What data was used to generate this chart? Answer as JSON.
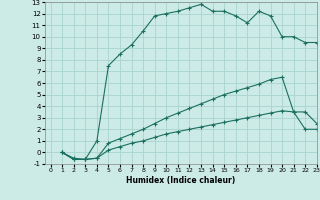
{
  "title": "",
  "xlabel": "Humidex (Indice chaleur)",
  "xlim": [
    -0.5,
    23
  ],
  "ylim": [
    -1,
    13
  ],
  "xticks": [
    0,
    1,
    2,
    3,
    4,
    5,
    6,
    7,
    8,
    9,
    10,
    11,
    12,
    13,
    14,
    15,
    16,
    17,
    18,
    19,
    20,
    21,
    22,
    23
  ],
  "yticks": [
    -1,
    0,
    1,
    2,
    3,
    4,
    5,
    6,
    7,
    8,
    9,
    10,
    11,
    12,
    13
  ],
  "line_color": "#1a7060",
  "bg_color": "#cceae6",
  "grid_color": "#aad4ce",
  "line1_x": [
    1,
    2,
    3,
    4,
    5,
    6,
    7,
    8,
    9,
    10,
    11,
    12,
    13,
    14,
    15,
    16,
    17,
    18,
    19,
    20,
    21,
    22,
    23
  ],
  "line1_y": [
    0,
    -0.5,
    -0.6,
    1.0,
    7.5,
    8.5,
    9.3,
    10.5,
    11.8,
    12.0,
    12.2,
    12.5,
    12.8,
    12.2,
    12.2,
    11.8,
    11.2,
    12.2,
    11.8,
    10.0,
    10.0,
    9.5,
    9.5
  ],
  "line2_x": [
    1,
    2,
    3,
    4,
    5,
    6,
    7,
    8,
    9,
    10,
    11,
    12,
    13,
    14,
    15,
    16,
    17,
    18,
    19,
    20,
    21,
    22,
    23
  ],
  "line2_y": [
    0,
    -0.6,
    -0.6,
    -0.5,
    0.8,
    1.2,
    1.6,
    2.0,
    2.5,
    3.0,
    3.4,
    3.8,
    4.2,
    4.6,
    5.0,
    5.3,
    5.6,
    5.9,
    6.3,
    6.5,
    3.5,
    3.5,
    2.5
  ],
  "line3_x": [
    1,
    2,
    3,
    4,
    5,
    6,
    7,
    8,
    9,
    10,
    11,
    12,
    13,
    14,
    15,
    16,
    17,
    18,
    19,
    20,
    21,
    22,
    23
  ],
  "line3_y": [
    0,
    -0.6,
    -0.6,
    -0.5,
    0.2,
    0.5,
    0.8,
    1.0,
    1.3,
    1.6,
    1.8,
    2.0,
    2.2,
    2.4,
    2.6,
    2.8,
    3.0,
    3.2,
    3.4,
    3.6,
    3.5,
    2.0,
    2.0
  ]
}
